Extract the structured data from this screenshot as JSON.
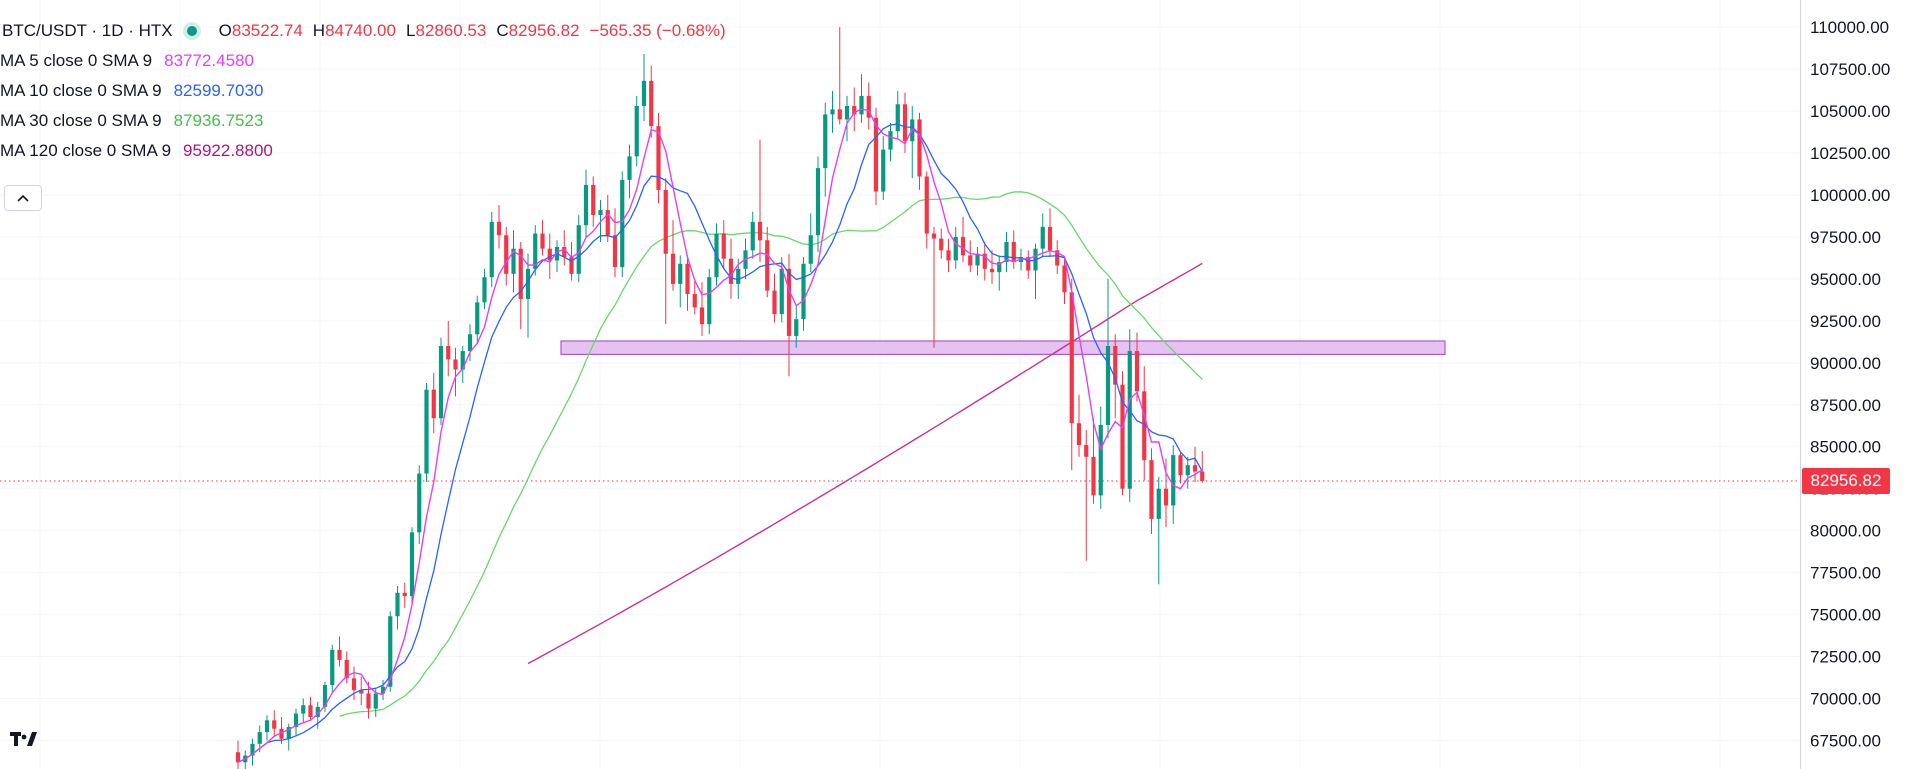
{
  "symbol": {
    "pair": "BTC/USDT",
    "interval": "1D",
    "exchange": "HTX",
    "title": "BTC/USDT · 1D · HTX"
  },
  "ohlc": {
    "open_label": "O",
    "open": "83522.74",
    "high_label": "H",
    "high": "84740.00",
    "low_label": "L",
    "low": "82860.53",
    "close_label": "C",
    "close": "82956.82",
    "change": "−565.35 (−0.68%)"
  },
  "indicators": [
    {
      "label": "MA 5 close 0 SMA 9",
      "value": "83772.4580",
      "color": "#e040fb"
    },
    {
      "label": "MA 10 close 0 SMA 9",
      "value": "82599.7030",
      "color": "#2962ff"
    },
    {
      "label": "MA 30 close 0 SMA 9",
      "value": "87936.7523",
      "color": "#4caf50"
    },
    {
      "label": "MA 120 close 0 SMA 9",
      "value": "95922.8800",
      "color": "#c2185b"
    }
  ],
  "last_price": "82956.82",
  "colors": {
    "up": "#089981",
    "down": "#f23645",
    "ma5": "#e040fb",
    "ma10": "#2962ff",
    "ma30": "#66d96a",
    "ma120": "#d0308a",
    "zone_fill": "#e5c2f2",
    "zone_stroke": "#b05ac8",
    "last_price_line": "#f23645"
  },
  "icons": {
    "collapse": "chevron-up-icon",
    "logo": "tradingview-logo-icon"
  },
  "chart_data": {
    "type": "candlestick",
    "y_axis": {
      "ticks": [
        "110000.00",
        "107500.00",
        "105000.00",
        "102500.00",
        "100000.00",
        "97500.00",
        "95000.00",
        "92500.00",
        "90000.00",
        "87500.00",
        "85000.00",
        "82500.00",
        "80000.00",
        "77500.00",
        "75000.00",
        "72500.00",
        "70000.00",
        "67500.00"
      ],
      "range": [
        65800,
        110900
      ],
      "position": "right"
    },
    "price_zone": {
      "from": 90500,
      "to": 91300
    },
    "last_price": 82956.82,
    "candles": [
      [
        66800,
        67500,
        65500,
        66200
      ],
      [
        66200,
        66900,
        65600,
        66600
      ],
      [
        66600,
        67600,
        66000,
        67300
      ],
      [
        67300,
        68400,
        66800,
        68000
      ],
      [
        68000,
        69000,
        67500,
        68700
      ],
      [
        68700,
        69300,
        67800,
        68200
      ],
      [
        68200,
        68900,
        67300,
        67600
      ],
      [
        67600,
        68500,
        66900,
        68300
      ],
      [
        68300,
        69400,
        67800,
        69100
      ],
      [
        69100,
        70000,
        68600,
        69600
      ],
      [
        69600,
        70100,
        68700,
        68900
      ],
      [
        68900,
        69800,
        68200,
        69500
      ],
      [
        69500,
        71000,
        69200,
        70800
      ],
      [
        70800,
        73200,
        70400,
        72900
      ],
      [
        72900,
        73700,
        71900,
        72300
      ],
      [
        72300,
        72800,
        70900,
        71200
      ],
      [
        71200,
        71900,
        69900,
        70500
      ],
      [
        70500,
        71300,
        69600,
        70300
      ],
      [
        70300,
        71000,
        68800,
        69400
      ],
      [
        69400,
        70600,
        68900,
        70300
      ],
      [
        70300,
        71100,
        69900,
        70700
      ],
      [
        70700,
        75200,
        70400,
        74900
      ],
      [
        74900,
        76700,
        74100,
        76300
      ],
      [
        76300,
        76900,
        75400,
        76100
      ],
      [
        76100,
        80200,
        75700,
        79900
      ],
      [
        79900,
        83900,
        79200,
        83400
      ],
      [
        83400,
        88800,
        82900,
        88400
      ],
      [
        88400,
        89400,
        85800,
        86700
      ],
      [
        86700,
        91500,
        86300,
        91000
      ],
      [
        91000,
        92500,
        89200,
        90200
      ],
      [
        90200,
        90900,
        88000,
        89600
      ],
      [
        89600,
        91000,
        88800,
        90700
      ],
      [
        90700,
        92300,
        90100,
        91700
      ],
      [
        91700,
        94000,
        91100,
        93600
      ],
      [
        93600,
        95600,
        93200,
        95100
      ],
      [
        95100,
        99000,
        94500,
        98400
      ],
      [
        98400,
        99400,
        96800,
        97600
      ],
      [
        97600,
        98100,
        94600,
        95300
      ],
      [
        95300,
        97900,
        94200,
        96800
      ],
      [
        96800,
        97200,
        92000,
        93800
      ],
      [
        93800,
        96500,
        91500,
        95600
      ],
      [
        95600,
        98200,
        95200,
        97700
      ],
      [
        97700,
        98500,
        96400,
        96800
      ],
      [
        96800,
        97700,
        95000,
        96100
      ],
      [
        96100,
        97300,
        95400,
        96900
      ],
      [
        96900,
        97900,
        95800,
        96300
      ],
      [
        96300,
        97200,
        94900,
        95300
      ],
      [
        95300,
        98800,
        94800,
        98200
      ],
      [
        98200,
        101500,
        97400,
        100600
      ],
      [
        100600,
        101100,
        98100,
        98800
      ],
      [
        98800,
        99700,
        97200,
        99100
      ],
      [
        99100,
        100000,
        97200,
        97600
      ],
      [
        97600,
        99200,
        95100,
        95700
      ],
      [
        95700,
        101400,
        95100,
        100900
      ],
      [
        100900,
        103000,
        99800,
        102300
      ],
      [
        102300,
        105900,
        101700,
        105300
      ],
      [
        105300,
        108400,
        104400,
        106800
      ],
      [
        106800,
        107700,
        103400,
        104100
      ],
      [
        104100,
        104900,
        99500,
        100300
      ],
      [
        100300,
        101000,
        92300,
        96500
      ],
      [
        96500,
        98500,
        94300,
        94700
      ],
      [
        94700,
        96400,
        93300,
        95900
      ],
      [
        95900,
        96400,
        93100,
        94100
      ],
      [
        94100,
        95000,
        92900,
        93300
      ],
      [
        93300,
        94800,
        91600,
        92300
      ],
      [
        92300,
        95600,
        91700,
        95100
      ],
      [
        95100,
        98300,
        94600,
        97700
      ],
      [
        97700,
        98500,
        95600,
        96200
      ],
      [
        96200,
        97400,
        93800,
        94700
      ],
      [
        94700,
        96200,
        93800,
        95600
      ],
      [
        95600,
        97400,
        95000,
        96700
      ],
      [
        96700,
        99000,
        96200,
        98400
      ],
      [
        98400,
        103300,
        96000,
        97300
      ],
      [
        97300,
        98100,
        93900,
        94300
      ],
      [
        94300,
        95300,
        92400,
        92900
      ],
      [
        92900,
        96300,
        92400,
        95600
      ],
      [
        95600,
        96500,
        89200,
        91600
      ],
      [
        91600,
        93400,
        90900,
        92600
      ],
      [
        92600,
        96300,
        91900,
        95900
      ],
      [
        95900,
        98900,
        95400,
        97600
      ],
      [
        97600,
        102300,
        96600,
        101600
      ],
      [
        101600,
        105500,
        99900,
        104800
      ],
      [
        104800,
        106200,
        103700,
        105100
      ],
      [
        105100,
        110000,
        104200,
        104500
      ],
      [
        104500,
        105900,
        103200,
        105300
      ],
      [
        105300,
        106400,
        103800,
        104800
      ],
      [
        104800,
        107200,
        104300,
        105900
      ],
      [
        105900,
        106700,
        103900,
        104600
      ],
      [
        104600,
        105200,
        99400,
        100200
      ],
      [
        100200,
        103500,
        99700,
        102700
      ],
      [
        102700,
        104300,
        102000,
        103800
      ],
      [
        103800,
        106200,
        103300,
        105400
      ],
      [
        105400,
        106100,
        102500,
        103200
      ],
      [
        103200,
        105300,
        101000,
        104500
      ],
      [
        104500,
        104900,
        100300,
        101100
      ],
      [
        101100,
        101400,
        96800,
        97700
      ],
      [
        97700,
        98100,
        90900,
        97400
      ],
      [
        97400,
        98000,
        96200,
        96700
      ],
      [
        96700,
        97400,
        95400,
        96100
      ],
      [
        96100,
        98100,
        95600,
        97500
      ],
      [
        97500,
        98700,
        96000,
        96400
      ],
      [
        96400,
        97300,
        95400,
        95800
      ],
      [
        95800,
        96900,
        95200,
        96500
      ],
      [
        96500,
        97200,
        94900,
        95600
      ],
      [
        95600,
        96700,
        94700,
        95400
      ],
      [
        95400,
        96400,
        94300,
        96000
      ],
      [
        96000,
        97800,
        95400,
        97200
      ],
      [
        97200,
        97900,
        95600,
        96000
      ],
      [
        96000,
        96800,
        95500,
        96300
      ],
      [
        96300,
        96700,
        95000,
        95500
      ],
      [
        95500,
        97100,
        93800,
        96800
      ],
      [
        96800,
        98900,
        96300,
        98100
      ],
      [
        98100,
        99200,
        96300,
        96700
      ],
      [
        96700,
        97300,
        95300,
        95800
      ],
      [
        95800,
        96300,
        93500,
        94200
      ],
      [
        94200,
        95000,
        83600,
        86400
      ],
      [
        86400,
        88100,
        84400,
        85100
      ],
      [
        85100,
        86000,
        78200,
        84400
      ],
      [
        84400,
        86700,
        81600,
        82100
      ],
      [
        82100,
        87400,
        81300,
        86300
      ],
      [
        86300,
        95000,
        85500,
        91000
      ],
      [
        91000,
        91700,
        86700,
        88700
      ],
      [
        88700,
        89500,
        82100,
        82500
      ],
      [
        82500,
        92000,
        81700,
        90700
      ],
      [
        90700,
        91800,
        87700,
        88300
      ],
      [
        88300,
        89800,
        83000,
        84200
      ],
      [
        84200,
        84900,
        79800,
        80700
      ],
      [
        80700,
        83200,
        76800,
        82500
      ],
      [
        82500,
        84300,
        80200,
        81500
      ],
      [
        81500,
        85100,
        80400,
        84500
      ],
      [
        84500,
        84700,
        82800,
        83300
      ],
      [
        83300,
        84400,
        82500,
        83900
      ],
      [
        83900,
        85000,
        82900,
        83520
      ],
      [
        83520,
        84740,
        82860,
        82957
      ]
    ]
  }
}
